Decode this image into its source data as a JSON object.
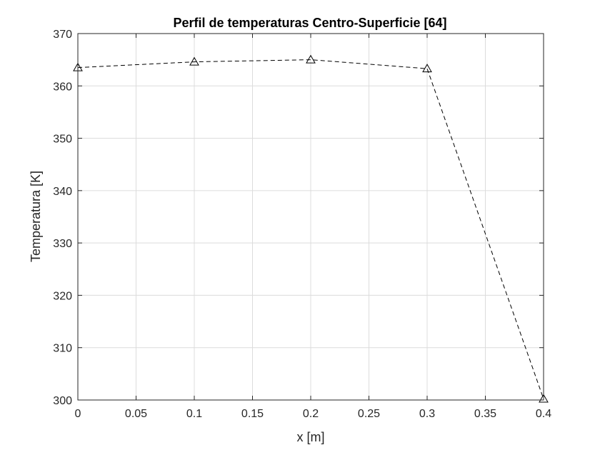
{
  "chart_data": {
    "type": "line",
    "title": "Perfil de temperaturas Centro-Superficie [64]",
    "xlabel": "x [m]",
    "ylabel": "Temperatura [K]",
    "xlim": [
      0,
      0.4
    ],
    "ylim": [
      300,
      370
    ],
    "xticks": [
      0,
      0.05,
      0.1,
      0.15,
      0.2,
      0.25,
      0.3,
      0.35,
      0.4
    ],
    "xtick_labels": [
      "0",
      "0.05",
      "0.1",
      "0.15",
      "0.2",
      "0.25",
      "0.3",
      "0.35",
      "0.4"
    ],
    "yticks": [
      300,
      310,
      320,
      330,
      340,
      350,
      360,
      370
    ],
    "ytick_labels": [
      "300",
      "310",
      "320",
      "330",
      "340",
      "350",
      "360",
      "370"
    ],
    "grid": true,
    "series": [
      {
        "x": [
          0,
          0.1,
          0.2,
          0.3,
          0.4
        ],
        "y": [
          363.5,
          364.6,
          365.0,
          363.3,
          300.2
        ],
        "line_style": "dashed",
        "marker": "triangle-open",
        "color": "#000000"
      }
    ]
  }
}
